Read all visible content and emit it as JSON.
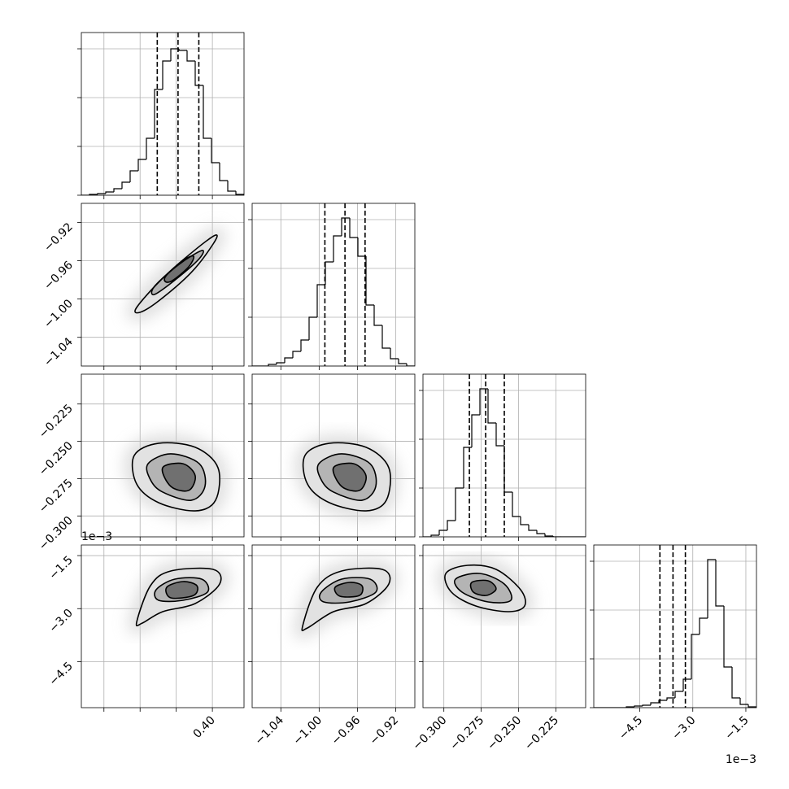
{
  "chart_data": [
    {
      "type": "histogram",
      "color": "#000000",
      "grid": true,
      "bins": [
        0.255,
        0.264,
        0.273,
        0.282,
        0.291,
        0.3,
        0.309,
        0.318,
        0.327,
        0.336,
        0.345,
        0.354,
        0.363,
        0.372,
        0.381,
        0.39,
        0.399,
        0.408,
        0.417,
        0.426,
        0.435
      ],
      "counts": [
        0,
        5,
        10,
        20,
        40,
        80,
        150,
        220,
        350,
        650,
        825,
        900,
        890,
        825,
        675,
        350,
        200,
        90,
        25,
        5
      ],
      "quantiles": [
        0.339,
        0.362,
        0.385
      ],
      "xlim": [
        0.255,
        0.435
      ],
      "xticks": [
        0.28,
        0.32,
        0.36,
        0.4
      ],
      "ylim": [
        0,
        1000
      ],
      "yticks": [
        0,
        300,
        600,
        900
      ]
    },
    {
      "type": "contour",
      "color": "#000000",
      "grid": true,
      "contours": [
        {
          "x": [
            0.3162,
            0.345,
            0.381,
            0.4035,
            0.4008,
            0.3765,
            0.3405,
            0.3198
          ],
          "y": [
            -1.0088,
            -0.9782,
            -0.9485,
            -0.9332,
            -0.9425,
            -0.9723,
            -1.002,
            -1.0139
          ]
        },
        {
          "x": [
            0.336,
            0.363,
            0.3882,
            0.3855,
            0.3612,
            0.336
          ],
          "y": [
            -0.9867,
            -0.9638,
            -0.9493,
            -0.9578,
            -0.9782,
            -0.9952
          ]
        },
        {
          "x": [
            0.3495,
            0.3675,
            0.3792,
            0.3738,
            0.3558,
            0.3477
          ],
          "y": [
            -0.9748,
            -0.9595,
            -0.9553,
            -0.9663,
            -0.9807,
            -0.9816
          ]
        }
      ],
      "xlim": [
        0.255,
        0.435
      ],
      "xticks": [
        0.28,
        0.32,
        0.36,
        0.4
      ],
      "ylim": [
        -1.07,
        -0.9
      ],
      "yticks": [
        {
          "value": -1.04,
          "label": "−1.04"
        },
        {
          "value": -1.0,
          "label": "−1.00"
        },
        {
          "value": -0.96,
          "label": "−0.96"
        },
        {
          "value": -0.92,
          "label": "−0.92"
        }
      ]
    },
    {
      "type": "histogram",
      "color": "#000000",
      "grid": true,
      "bins": [
        -1.07,
        -1.0615,
        -1.053,
        -1.0445,
        -1.036,
        -1.0275,
        -1.019,
        -1.0105,
        -1.002,
        -0.9935,
        -0.985,
        -0.9765,
        -0.968,
        -0.9595,
        -0.951,
        -0.9425,
        -0.934,
        -0.9255,
        -0.917,
        -0.9085,
        -0.9
      ],
      "counts": [
        0,
        0,
        10,
        20,
        50,
        90,
        160,
        300,
        500,
        640,
        800,
        910,
        790,
        675,
        375,
        250,
        110,
        45,
        15,
        0
      ],
      "quantiles": [
        -0.994,
        -0.973,
        -0.952
      ],
      "xlim": [
        -1.07,
        -0.9
      ],
      "xticks": [
        -1.04,
        -1.0,
        -0.96,
        -0.92
      ],
      "ylim": [
        0,
        1000
      ],
      "yticks": [
        0,
        300,
        600,
        900
      ]
    },
    {
      "type": "contour",
      "color": "#000000",
      "grid": true,
      "contours": [
        {
          "x": [
            0.3135,
            0.3405,
            0.381,
            0.4062,
            0.4035,
            0.381,
            0.3405,
            0.3162
          ],
          "y": [
            -0.2595,
            -0.2513,
            -0.254,
            -0.2677,
            -0.2895,
            -0.2966,
            -0.2911,
            -0.2786
          ]
        },
        {
          "x": [
            0.3288,
            0.354,
            0.3855,
            0.3918,
            0.3765,
            0.345,
            0.3315
          ],
          "y": [
            -0.265,
            -0.2584,
            -0.265,
            -0.2802,
            -0.2895,
            -0.284,
            -0.2758
          ]
        },
        {
          "x": [
            0.345,
            0.3675,
            0.381,
            0.3738,
            0.354
          ],
          "y": [
            -0.2677,
            -0.265,
            -0.2731,
            -0.2829,
            -0.2802
          ]
        }
      ],
      "xlim": [
        0.255,
        0.435
      ],
      "xticks": [
        0.28,
        0.32,
        0.36,
        0.4
      ],
      "ylim": [
        -0.314,
        -0.205
      ],
      "yticks": [
        {
          "value": -0.3,
          "label": "−0.300"
        },
        {
          "value": -0.275,
          "label": "−0.275"
        },
        {
          "value": -0.25,
          "label": "−0.250"
        },
        {
          "value": -0.225,
          "label": "−0.225"
        }
      ]
    },
    {
      "type": "contour",
      "color": "#000000",
      "grid": true,
      "contours": [
        {
          "x": [
            -1.0148,
            -0.9893,
            -0.951,
            -0.9272,
            -0.9298,
            -0.951,
            -0.9893,
            -1.0122
          ],
          "y": [
            -0.2595,
            -0.2513,
            -0.254,
            -0.2677,
            -0.2895,
            -0.2966,
            -0.2911,
            -0.2786
          ]
        },
        {
          "x": [
            -1.0003,
            -0.9765,
            -0.9468,
            -0.9408,
            -0.9553,
            -0.985,
            -0.9978
          ],
          "y": [
            -0.265,
            -0.2584,
            -0.265,
            -0.2802,
            -0.2895,
            -0.284,
            -0.2758
          ]
        },
        {
          "x": [
            -0.985,
            -0.9638,
            -0.951,
            -0.9578,
            -0.9765
          ],
          "y": [
            -0.2677,
            -0.265,
            -0.2731,
            -0.2829,
            -0.2802
          ]
        }
      ],
      "xlim": [
        -1.07,
        -0.9
      ],
      "xticks": [
        -1.04,
        -1.0,
        -0.96,
        -0.92
      ],
      "ylim": [
        -0.314,
        -0.205
      ],
      "yticks": [
        -0.3,
        -0.275,
        -0.25,
        -0.225
      ]
    },
    {
      "type": "histogram",
      "color": "#000000",
      "grid": true,
      "bins": [
        -0.314,
        -0.30855,
        -0.3031,
        -0.29765,
        -0.2922,
        -0.28675,
        -0.2813,
        -0.27585,
        -0.2704,
        -0.26495,
        -0.2595,
        -0.25405,
        -0.2486,
        -0.24315,
        -0.2377,
        -0.23225,
        -0.2268,
        -0.22135,
        -0.2159,
        -0.21045,
        -0.205
      ],
      "counts": [
        0,
        10,
        40,
        100,
        300,
        550,
        750,
        910,
        700,
        560,
        275,
        125,
        75,
        40,
        20,
        5,
        0,
        0,
        0,
        0
      ],
      "quantiles": [
        -0.2829,
        -0.272,
        -0.2595
      ],
      "xlim": [
        -0.314,
        -0.205
      ],
      "xticks": [
        -0.3,
        -0.275,
        -0.25,
        -0.225
      ],
      "ylim": [
        0,
        1000
      ],
      "yticks": [
        0,
        300,
        600,
        900
      ]
    },
    {
      "type": "contour",
      "color": "#000000",
      "grid": true,
      "contours": [
        {
          "x": [
            0.3162,
            0.3315,
            0.354,
            0.4008,
            0.408,
            0.381,
            0.345,
            0.3225
          ],
          "y": [
            -0.003385,
            -0.00235,
            -0.001936,
            -0.00189,
            -0.002304,
            -0.002856,
            -0.003086,
            -0.003408
          ]
        },
        {
          "x": [
            0.3378,
            0.3585,
            0.3882,
            0.3945,
            0.3675,
            0.3405
          ],
          "y": [
            -0.002465,
            -0.002166,
            -0.002166,
            -0.002534,
            -0.002764,
            -0.002764
          ]
        },
        {
          "x": [
            0.3495,
            0.3675,
            0.3828,
            0.3792,
            0.354
          ],
          "y": [
            -0.002396,
            -0.002235,
            -0.00235,
            -0.002626,
            -0.002695
          ]
        }
      ],
      "xlim": [
        0.255,
        0.435
      ],
      "xticks": [
        0.28,
        0.32,
        0.36,
        {
          "value": 0.4,
          "label": "0.40"
        }
      ],
      "ylim": [
        -0.0058,
        -0.0012
      ],
      "yticks": [
        {
          "value": -0.0045,
          "label": "−4.5"
        },
        {
          "value": -0.003,
          "label": "−3.0"
        },
        {
          "value": -0.0015,
          "label": "−1.5"
        }
      ],
      "yoffset_label": "1e−3"
    },
    {
      "type": "contour",
      "color": "#000000",
      "grid": true,
      "contours": [
        {
          "x": [
            -1.0173,
            -1.002,
            -0.9765,
            -0.934,
            -0.9272,
            -0.951,
            -0.985,
            -1.0122
          ],
          "y": [
            -0.0035,
            -0.002396,
            -0.001936,
            -0.00189,
            -0.002304,
            -0.002856,
            -0.003086,
            -0.003546
          ]
        },
        {
          "x": [
            -0.9978,
            -0.9765,
            -0.9468,
            -0.9408,
            -0.968,
            -0.9952
          ],
          "y": [
            -0.002534,
            -0.002166,
            -0.002166,
            -0.002534,
            -0.00281,
            -0.00281
          ]
        },
        {
          "x": [
            -0.9833,
            -0.968,
            -0.9553,
            -0.9578,
            -0.9782
          ],
          "y": [
            -0.002396,
            -0.002258,
            -0.00235,
            -0.002626,
            -0.002649
          ]
        }
      ],
      "xlim": [
        -1.07,
        -0.9
      ],
      "xticks": [
        {
          "value": -1.04,
          "label": "−1.04"
        },
        {
          "value": -1.0,
          "label": "−1.00"
        },
        {
          "value": -0.96,
          "label": "−0.96"
        },
        {
          "value": -0.92,
          "label": "−0.92"
        }
      ],
      "ylim": [
        -0.0058,
        -0.0012
      ],
      "yticks": [
        -0.0045,
        -0.003,
        -0.0015
      ]
    },
    {
      "type": "contour",
      "color": "#000000",
      "grid": true,
      "contours": [
        {
          "x": [
            -0.2987,
            -0.284,
            -0.265,
            -0.2486,
            -0.2459,
            -0.2568,
            -0.2786,
            -0.2949
          ],
          "y": [
            -0.002005,
            -0.001775,
            -0.00189,
            -0.002465,
            -0.002925,
            -0.003086,
            -0.002925,
            -0.002534
          ]
        },
        {
          "x": [
            -0.2922,
            -0.2759,
            -0.2595,
            -0.2551,
            -0.2704,
            -0.2878
          ],
          "y": [
            -0.002166,
            -0.002005,
            -0.002304,
            -0.002764,
            -0.00281,
            -0.002534
          ]
        },
        {
          "x": [
            -0.2813,
            -0.2704,
            -0.265,
            -0.2715,
            -0.2802
          ],
          "y": [
            -0.002258,
            -0.002212,
            -0.002442,
            -0.002626,
            -0.002534
          ]
        }
      ],
      "xlim": [
        -0.314,
        -0.205
      ],
      "xticks": [
        {
          "value": -0.3,
          "label": "−0.300"
        },
        {
          "value": -0.275,
          "label": "−0.275"
        },
        {
          "value": -0.25,
          "label": "−0.250"
        },
        {
          "value": -0.225,
          "label": "−0.225"
        }
      ],
      "ylim": [
        -0.0058,
        -0.0012
      ],
      "yticks": [
        -0.0045,
        -0.003,
        -0.0015
      ]
    },
    {
      "type": "histogram",
      "color": "#000000",
      "grid": true,
      "bins": [
        -0.0058,
        -0.00557,
        -0.00534,
        -0.00511,
        -0.00488,
        -0.00465,
        -0.00442,
        -0.00419,
        -0.00396,
        -0.00373,
        -0.0035,
        -0.00327,
        -0.00304,
        -0.00281,
        -0.00258,
        -0.00235,
        -0.00212,
        -0.00189,
        -0.00166,
        -0.00143,
        -0.0012
      ],
      "counts": [
        0,
        0,
        0,
        0,
        5,
        10,
        15,
        30,
        45,
        60,
        100,
        175,
        450,
        550,
        910,
        625,
        250,
        60,
        20,
        5
      ],
      "quantiles": [
        -0.00393,
        -0.00356,
        -0.00321
      ],
      "xlim": [
        -0.0058,
        -0.0012
      ],
      "xticks": [
        {
          "value": -0.0045,
          "label": "−4.5"
        },
        {
          "value": -0.003,
          "label": "−3.0"
        },
        {
          "value": -0.0015,
          "label": "−1.5"
        }
      ],
      "ylim": [
        0,
        1000
      ],
      "yticks": [
        0,
        300,
        600,
        900
      ],
      "xoffset_label": "1e−3"
    }
  ]
}
